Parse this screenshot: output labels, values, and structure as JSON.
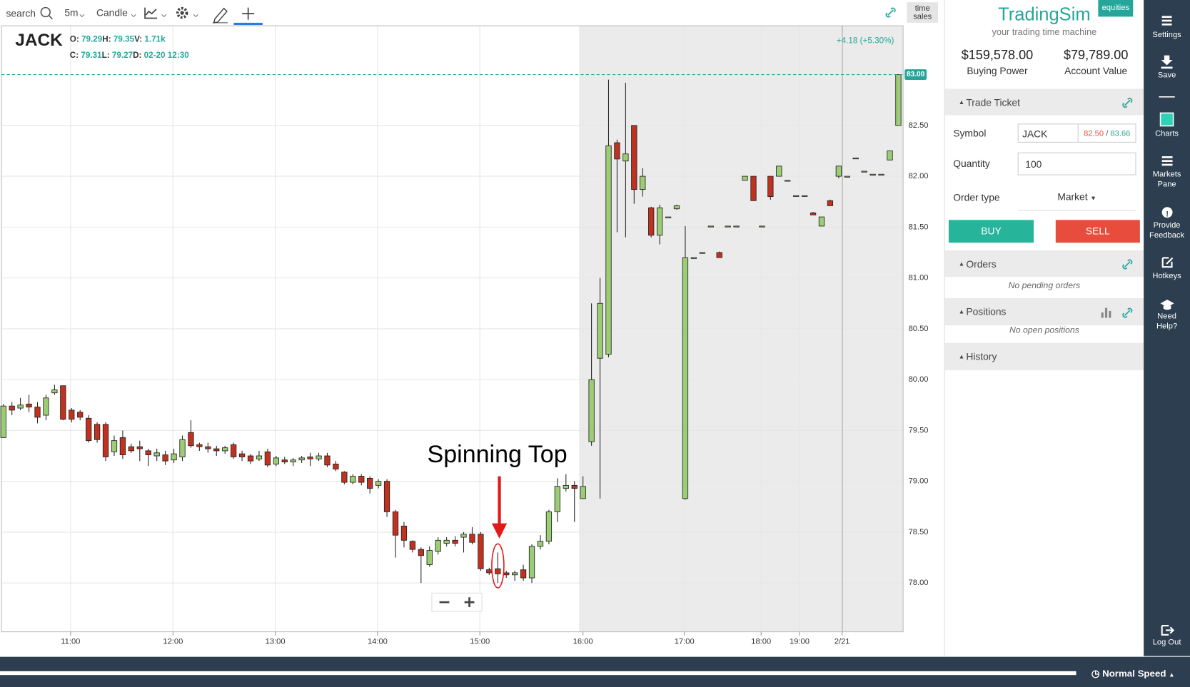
{
  "toolbar": {
    "search": "search",
    "interval": "5m",
    "chart_type": "Candle",
    "time_sales": "time sales"
  },
  "chart_data": {
    "type": "candlestick",
    "symbol": "JACK",
    "ohlc_header": [
      [
        {
          "label": "O:",
          "value": "79.29"
        },
        {
          "label": "H:",
          "value": "79.35"
        },
        {
          "label": "V:",
          "value": "1.71k"
        }
      ],
      [
        {
          "label": "C:",
          "value": "79.31"
        },
        {
          "label": "L:",
          "value": "79.27"
        },
        {
          "label": "D:",
          "value": "02-20 12:30"
        }
      ]
    ],
    "change": "+4.18 (+5.30%)",
    "annotation": "Spinning Top",
    "up_color": "#9ccc74",
    "down_color": "#c0321f",
    "grid": true,
    "ylim": [
      77.52,
      83.48
    ],
    "yticks": [
      {
        "value": 78,
        "label": "78.00"
      },
      {
        "value": 78.5,
        "label": "78.50"
      },
      {
        "value": 79,
        "label": "79.00"
      },
      {
        "value": 79.5,
        "label": "79.50"
      },
      {
        "value": 80,
        "label": "80.00"
      },
      {
        "value": 80.5,
        "label": "80.50"
      },
      {
        "value": 81,
        "label": "81.00"
      },
      {
        "value": 81.5,
        "label": "81.50"
      },
      {
        "value": 82,
        "label": "82.00"
      },
      {
        "value": 82.5,
        "label": "82.50"
      }
    ],
    "xlim": [
      -0.22,
      105.56
    ],
    "xticks": [
      {
        "value": 7.88,
        "label": "11:00"
      },
      {
        "value": 19.9,
        "label": "12:00"
      },
      {
        "value": 31.9,
        "label": "13:00"
      },
      {
        "value": 43.9,
        "label": "14:00"
      },
      {
        "value": 55.9,
        "label": "15:00"
      },
      {
        "value": 68,
        "label": "16:00"
      },
      {
        "value": 79.9,
        "label": "17:00"
      },
      {
        "value": 88.9,
        "label": "18:00"
      },
      {
        "value": 93.4,
        "label": "19:00"
      },
      {
        "value": 98.4,
        "label": "2/21"
      }
    ],
    "last_price": {
      "value": 83,
      "label": "83.00"
    },
    "candles": [
      [
        79.43,
        79.76,
        79.43,
        79.74
      ],
      [
        79.74,
        79.78,
        79.65,
        79.7
      ],
      [
        79.72,
        79.82,
        79.7,
        79.75
      ],
      [
        79.76,
        79.85,
        79.68,
        79.73
      ],
      [
        79.73,
        79.78,
        79.57,
        79.63
      ],
      [
        79.65,
        79.85,
        79.6,
        79.82
      ],
      [
        79.87,
        79.95,
        79.85,
        79.9
      ],
      [
        79.94,
        79.94,
        79.6,
        79.61
      ],
      [
        79.7,
        79.72,
        79.58,
        79.61
      ],
      [
        79.68,
        79.7,
        79.6,
        79.63
      ],
      [
        79.62,
        79.65,
        79.38,
        79.4
      ],
      [
        79.56,
        79.58,
        79.38,
        79.41
      ],
      [
        79.56,
        79.58,
        79.2,
        79.24
      ],
      [
        79.29,
        79.45,
        79.25,
        79.4
      ],
      [
        79.43,
        79.5,
        79.22,
        79.26
      ],
      [
        79.34,
        79.37,
        79.28,
        79.3
      ],
      [
        79.34,
        79.4,
        79.2,
        79.32
      ],
      [
        79.3,
        79.32,
        79.15,
        79.26
      ],
      [
        79.25,
        79.32,
        79.2,
        79.28
      ],
      [
        79.26,
        79.3,
        79.16,
        79.2
      ],
      [
        79.21,
        79.32,
        79.18,
        79.27
      ],
      [
        79.24,
        79.45,
        79.2,
        79.41
      ],
      [
        79.48,
        79.6,
        79.33,
        79.35
      ],
      [
        79.36,
        79.38,
        79.3,
        79.34
      ],
      [
        79.34,
        79.38,
        79.28,
        79.32
      ],
      [
        79.32,
        79.35,
        79.25,
        79.3
      ],
      [
        79.3,
        79.35,
        79.27,
        79.33
      ],
      [
        79.36,
        79.38,
        79.22,
        79.24
      ],
      [
        79.27,
        79.3,
        79.2,
        79.24
      ],
      [
        79.25,
        79.27,
        79.17,
        79.2
      ],
      [
        79.22,
        79.3,
        79.2,
        79.25
      ],
      [
        79.29,
        79.32,
        79.14,
        79.16
      ],
      [
        79.17,
        79.25,
        79.15,
        79.23
      ],
      [
        79.21,
        79.24,
        79.17,
        79.19
      ],
      [
        79.19,
        79.23,
        79.15,
        79.21
      ],
      [
        79.21,
        79.25,
        79.18,
        79.23
      ],
      [
        79.24,
        79.28,
        79.15,
        79.22
      ],
      [
        79.22,
        79.28,
        79.2,
        79.25
      ],
      [
        79.25,
        79.28,
        79.14,
        79.16
      ],
      [
        79.17,
        79.2,
        79.1,
        79.12
      ],
      [
        79.09,
        79.1,
        78.97,
        78.99
      ],
      [
        78.99,
        79.07,
        78.97,
        79.05
      ],
      [
        79.05,
        79.07,
        78.96,
        78.99
      ],
      [
        79.03,
        79.05,
        78.88,
        78.93
      ],
      [
        78.96,
        79.02,
        78.93,
        79.0
      ],
      [
        79.0,
        79.02,
        78.65,
        78.7
      ],
      [
        78.7,
        78.72,
        78.25,
        78.47
      ],
      [
        78.56,
        78.6,
        78.35,
        78.42
      ],
      [
        78.41,
        78.42,
        78.3,
        78.33
      ],
      [
        78.33,
        78.35,
        78.0,
        78.27
      ],
      [
        78.18,
        78.36,
        78.16,
        78.32
      ],
      [
        78.31,
        78.45,
        78.28,
        78.42
      ],
      [
        78.39,
        78.45,
        78.36,
        78.42
      ],
      [
        78.42,
        78.46,
        78.36,
        78.39
      ],
      [
        78.45,
        78.5,
        78.3,
        78.48
      ],
      [
        78.48,
        78.55,
        78.38,
        78.4
      ],
      [
        78.48,
        78.5,
        78.12,
        78.14
      ],
      [
        78.13,
        78.15,
        78.08,
        78.1
      ],
      [
        78.14,
        78.3,
        78.0,
        78.09
      ],
      [
        78.1,
        78.12,
        78.05,
        78.08
      ],
      [
        78.08,
        78.12,
        78.02,
        78.1
      ],
      [
        78.13,
        78.18,
        78.02,
        78.05
      ],
      [
        78.05,
        78.38,
        78.0,
        78.36
      ],
      [
        78.36,
        78.47,
        78.33,
        78.41
      ],
      [
        78.41,
        78.72,
        78.38,
        78.7
      ],
      [
        78.7,
        79.03,
        78.6,
        78.95
      ],
      [
        78.93,
        79.07,
        78.9,
        78.96
      ],
      [
        78.96,
        79.0,
        78.6,
        78.93
      ],
      [
        78.83,
        79.05,
        78.83,
        78.95
      ],
      [
        79.39,
        80.75,
        79.35,
        80.0
      ],
      [
        80.21,
        81.0,
        78.83,
        80.75
      ],
      [
        80.25,
        82.95,
        80.22,
        82.3
      ],
      [
        82.33,
        82.36,
        81.45,
        82.17
      ],
      [
        82.15,
        82.92,
        81.4,
        82.22
      ],
      [
        82.5,
        82.5,
        81.73,
        81.87
      ],
      [
        81.87,
        82.08,
        81.8,
        82.0
      ],
      [
        81.69,
        81.7,
        81.4,
        81.42
      ],
      [
        81.42,
        81.72,
        81.33,
        81.69
      ],
      [
        81.6,
        81.6,
        81.6,
        81.6
      ],
      [
        81.68,
        81.72,
        81.67,
        81.71
      ],
      [
        78.83,
        81.51,
        78.82,
        81.2
      ],
      [
        81.2,
        81.2,
        81.2,
        81.2
      ],
      [
        81.25,
        81.25,
        81.25,
        81.25
      ],
      [
        81.51,
        81.51,
        81.51,
        81.51
      ],
      [
        81.25,
        81.26,
        81.2,
        81.2
      ],
      [
        81.51,
        81.51,
        81.51,
        81.51
      ],
      [
        81.51,
        81.51,
        81.51,
        81.51
      ],
      [
        81.96,
        82.0,
        81.96,
        82.0
      ],
      [
        82.0,
        82.0,
        81.76,
        81.76
      ],
      [
        81.51,
        81.51,
        81.51,
        81.51
      ],
      [
        82.0,
        82.0,
        81.77,
        81.8
      ],
      [
        82.0,
        82.1,
        82.0,
        82.1
      ],
      [
        81.96,
        81.96,
        81.96,
        81.96
      ],
      [
        81.81,
        81.81,
        81.81,
        81.81
      ],
      [
        81.81,
        81.81,
        81.81,
        81.81
      ],
      [
        81.64,
        81.65,
        81.62,
        81.62
      ],
      [
        81.51,
        81.6,
        81.51,
        81.6
      ],
      [
        81.76,
        81.77,
        81.71,
        81.71
      ],
      [
        82.0,
        82.1,
        81.98,
        82.1
      ],
      [
        82.0,
        82.0,
        82.0,
        82.0
      ],
      [
        82.18,
        82.18,
        82.18,
        82.18
      ],
      [
        82.05,
        82.05,
        82.05,
        82.05
      ],
      [
        82.02,
        82.02,
        82.02,
        82.02
      ],
      [
        82.02,
        82.02,
        82.02,
        82.02
      ],
      [
        82.16,
        82.25,
        82.16,
        82.25
      ],
      [
        82.5,
        83.0,
        82.5,
        83.0
      ]
    ]
  },
  "sidebar": {
    "brand": "TradingSim",
    "badge": "equities",
    "tagline": "your trading time machine",
    "buying_power": {
      "value": "$159,578.00",
      "label": "Buying Power"
    },
    "account_value": {
      "value": "$79,789.00",
      "label": "Account Value"
    },
    "trade_ticket": {
      "title": "Trade Ticket",
      "symbol_label": "Symbol",
      "symbol": "JACK",
      "bid": "82.50",
      "separator": "/",
      "ask": "83.66",
      "quantity_label": "Quantity",
      "quantity": "100",
      "order_type_label": "Order type",
      "order_type": "Market",
      "buy": "BUY",
      "sell": "SELL"
    },
    "orders": {
      "title": "Orders",
      "empty": "No pending orders"
    },
    "positions": {
      "title": "Positions",
      "empty": "No open positions"
    },
    "history": {
      "title": "History"
    }
  },
  "nav": [
    "Settings",
    "Save",
    "Charts",
    "Markets Pane",
    "Provide Feedback",
    "Hotkeys",
    "Need Help?",
    "Log Out"
  ],
  "footer": {
    "speed": "Normal Speed"
  }
}
